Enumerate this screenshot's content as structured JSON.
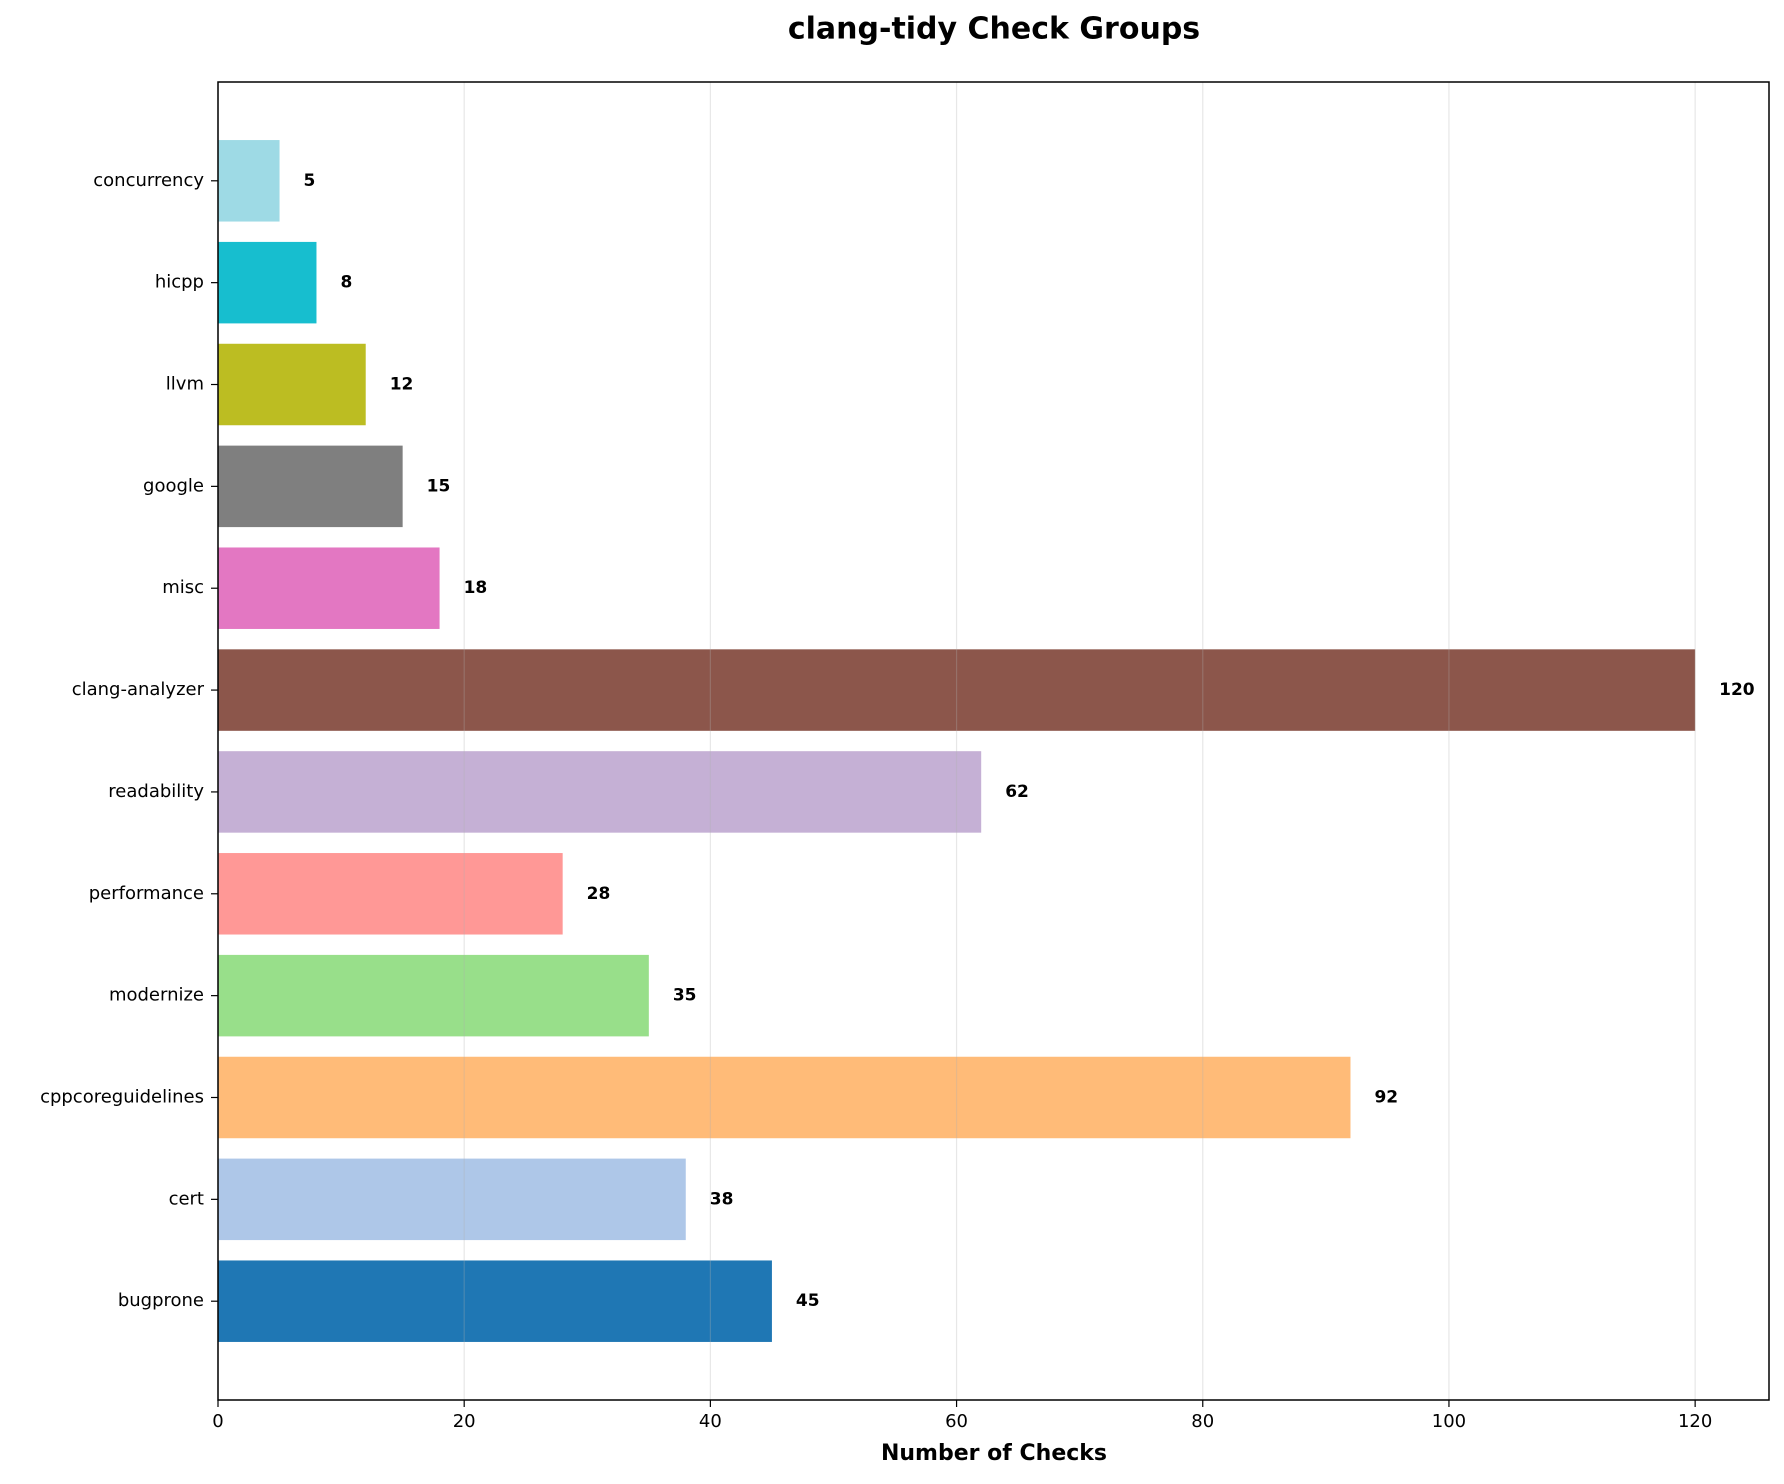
{
  "chart_data": {
    "type": "barh",
    "title": "clang-tidy Check Groups",
    "x_label": "Number of Checks",
    "categories": [
      "bugprone",
      "cert",
      "cppcoreguidelines",
      "modernize",
      "performance",
      "readability",
      "clang-analyzer",
      "misc",
      "google",
      "llvm",
      "hicpp",
      "concurrency"
    ],
    "values": [
      45,
      38,
      92,
      35,
      28,
      62,
      120,
      18,
      15,
      12,
      8,
      5
    ],
    "colors": [
      "#1f77b4",
      "#aec7e8",
      "#ffbb78",
      "#98df8a",
      "#ff9896",
      "#c5b0d5",
      "#8c564b",
      "#e377c2",
      "#7f7f7f",
      "#bcbd22",
      "#17becf",
      "#9edae5"
    ],
    "xlim": [
      0,
      126
    ],
    "xticks": [
      0,
      20,
      40,
      60,
      80,
      100,
      120
    ],
    "grid": true
  }
}
